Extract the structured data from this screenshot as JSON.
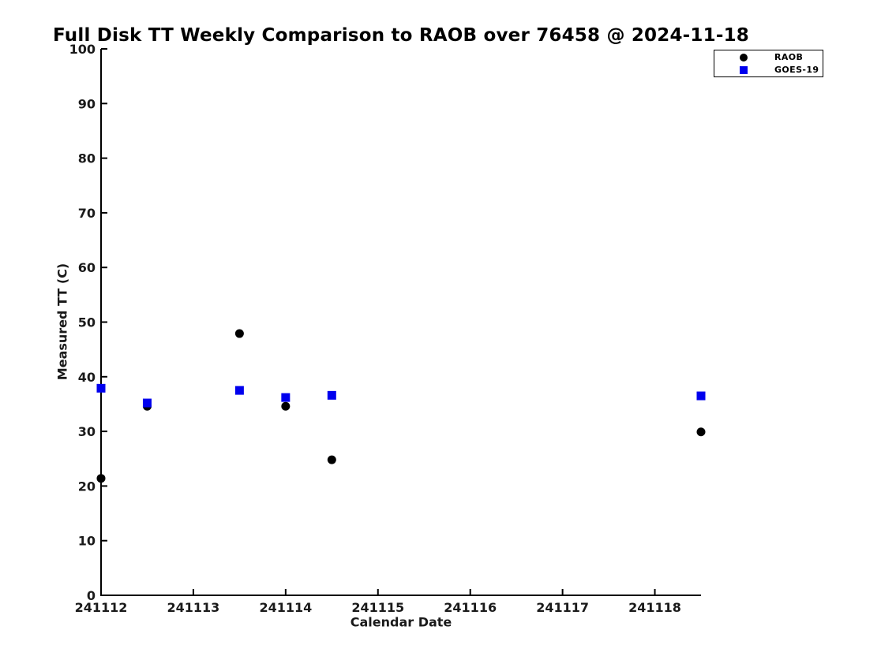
{
  "chart": {
    "title": "Full Disk TT Weekly Comparison to RAOB over 76458 @ 2024-11-18",
    "xlabel": "Calendar Date",
    "ylabel": "Measured TT (C)"
  },
  "legend": {
    "position": "top-right",
    "items": [
      {
        "label": "RAOB",
        "marker": "circle",
        "color": "#000000"
      },
      {
        "label": "GOES-19",
        "marker": "square",
        "color": "#0000ee"
      }
    ]
  },
  "chart_data": {
    "type": "scatter",
    "title": "Full Disk TT Weekly Comparison to RAOB over 76458 @ 2024-11-18",
    "xlabel": "Calendar Date",
    "ylabel": "Measured TT (C)",
    "xlim": [
      241112,
      241118.5
    ],
    "ylim": [
      0,
      100
    ],
    "x_ticks": [
      241112,
      241113,
      241114,
      241115,
      241116,
      241117,
      241118
    ],
    "y_ticks": [
      0,
      10,
      20,
      30,
      40,
      50,
      60,
      70,
      80,
      90,
      100
    ],
    "grid": false,
    "legend_position": "top-right",
    "axis_color": "#000000",
    "marker_size_px": 11,
    "series": [
      {
        "name": "RAOB",
        "marker": "circle",
        "color": "#000000",
        "points": [
          [
            241112.0,
            21.4
          ],
          [
            241112.5,
            34.6
          ],
          [
            241113.5,
            47.9
          ],
          [
            241114.0,
            34.6
          ],
          [
            241114.5,
            24.8
          ],
          [
            241118.5,
            29.9
          ]
        ]
      },
      {
        "name": "GOES-19",
        "marker": "square",
        "color": "#0000ee",
        "points": [
          [
            241112.0,
            37.9
          ],
          [
            241112.5,
            35.2
          ],
          [
            241113.5,
            37.5
          ],
          [
            241114.0,
            36.2
          ],
          [
            241114.5,
            36.6
          ],
          [
            241118.5,
            36.5
          ]
        ]
      }
    ]
  }
}
